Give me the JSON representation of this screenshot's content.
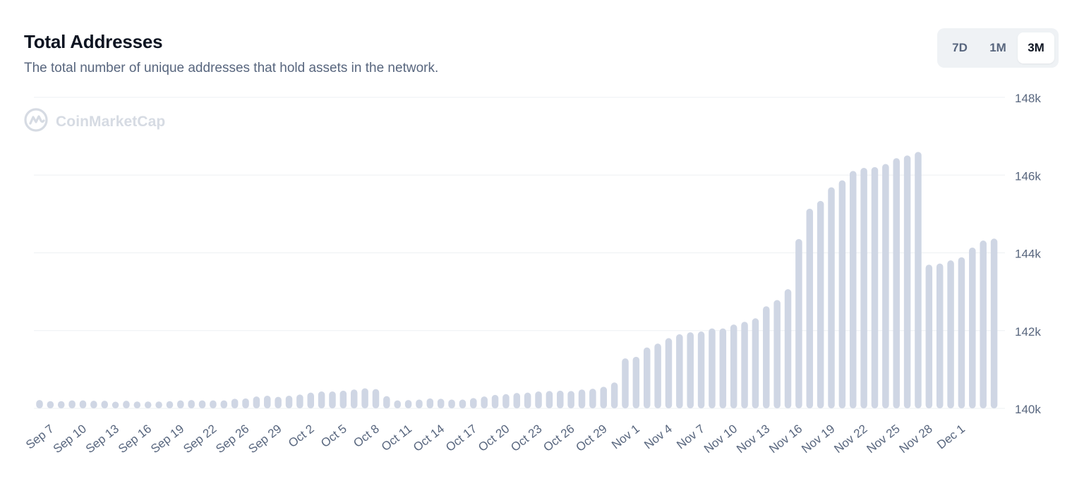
{
  "header": {
    "title": "Total Addresses",
    "subtitle": "The total number of unique addresses that hold assets in the network."
  },
  "range_toggle": {
    "options": [
      "7D",
      "1M",
      "3M"
    ],
    "selected": "3M"
  },
  "watermark": {
    "text": "CoinMarketCap",
    "icon": "coinmarketcap-logo"
  },
  "colors": {
    "bar": "#cfd6e4",
    "grid": "#eef0f3",
    "tick_text": "#58667e"
  },
  "chart_data": {
    "type": "bar",
    "title": "Total Addresses",
    "subtitle": "The total number of unique addresses that hold assets in the network.",
    "ylim": [
      140000,
      148000
    ],
    "y_ticks": [
      140000,
      142000,
      144000,
      146000,
      148000
    ],
    "y_tick_labels": [
      "140k",
      "142k",
      "144k",
      "146k",
      "148k"
    ],
    "y_axis_side": "right",
    "grid": true,
    "x_tick_labels": [
      "Sep 7",
      "Sep 10",
      "Sep 13",
      "Sep 16",
      "Sep 19",
      "Sep 22",
      "Sep 26",
      "Sep 29",
      "Oct 2",
      "Oct 5",
      "Oct 8",
      "Oct 11",
      "Oct 14",
      "Oct 17",
      "Oct 20",
      "Oct 23",
      "Oct 26",
      "Oct 29",
      "Nov 1",
      "Nov 4",
      "Nov 7",
      "Nov 10",
      "Nov 13",
      "Nov 16",
      "Nov 19",
      "Nov 22",
      "Nov 25",
      "Nov 28",
      "Dec 1"
    ],
    "x_tick_bar_index": [
      1,
      4,
      7,
      10,
      13,
      16,
      19,
      22,
      25,
      28,
      31,
      34,
      37,
      40,
      43,
      46,
      49,
      52,
      55,
      58,
      61,
      64,
      67,
      70,
      73,
      76,
      79,
      82,
      85
    ],
    "values": [
      140180,
      140150,
      140150,
      140170,
      140170,
      140160,
      140160,
      140130,
      140160,
      140140,
      140140,
      140140,
      140150,
      140170,
      140180,
      140170,
      140170,
      140170,
      140210,
      140220,
      140270,
      140290,
      140260,
      140290,
      140320,
      140370,
      140400,
      140400,
      140420,
      140450,
      140480,
      140460,
      140280,
      140170,
      140180,
      140190,
      140220,
      140210,
      140190,
      140190,
      140230,
      140270,
      140310,
      140330,
      140360,
      140370,
      140400,
      140410,
      140420,
      140410,
      140450,
      140470,
      140520,
      140630,
      141250,
      141290,
      141530,
      141630,
      141770,
      141870,
      141920,
      141940,
      142020,
      142020,
      142120,
      142190,
      142280,
      142590,
      142750,
      143030,
      144320,
      145100,
      145300,
      145650,
      145830,
      146070,
      146150,
      146170,
      146250,
      146400,
      146470,
      146560,
      143660,
      143690,
      143770,
      143850,
      144100,
      144280,
      144330
    ]
  }
}
